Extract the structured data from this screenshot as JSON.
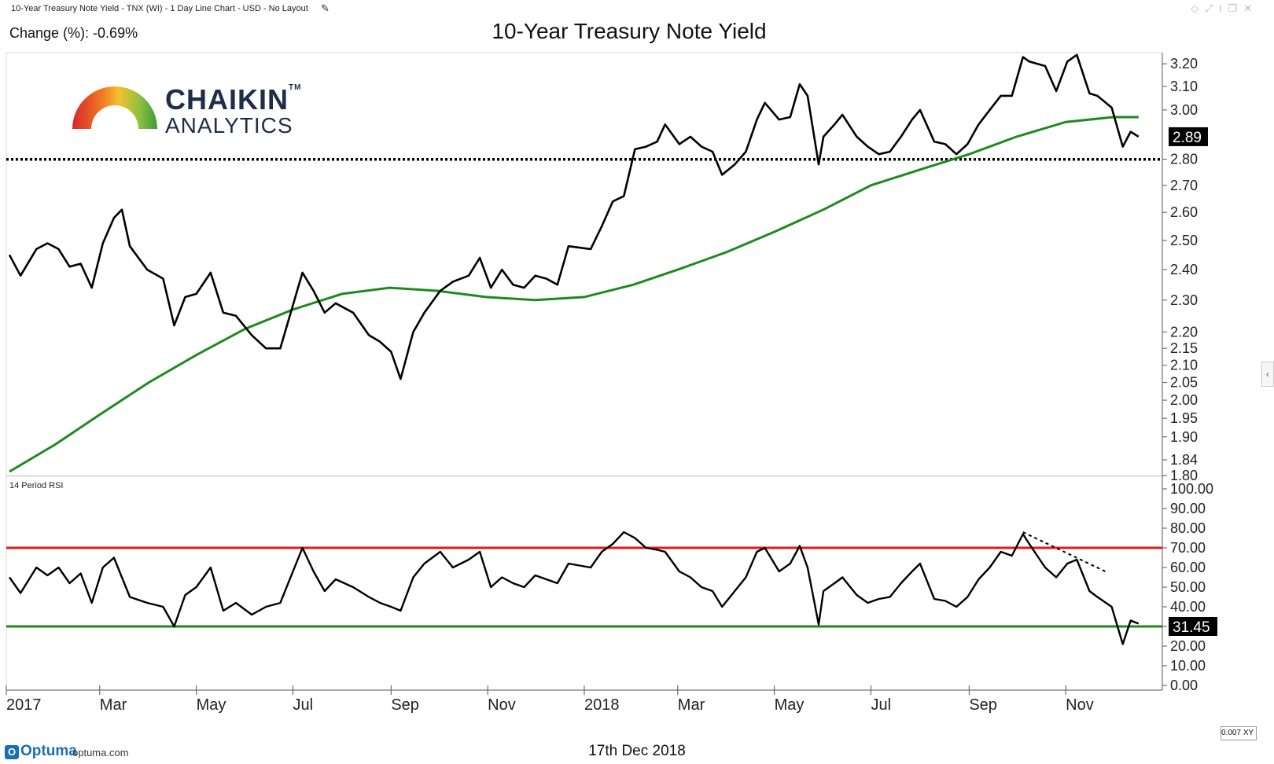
{
  "header": {
    "info": "10-Year Treasury Note Yield - TNX (WI) - 1 Day Line Chart - USD - No Layout",
    "change": "Change (%): -0.69%",
    "title": "10-Year Treasury Note Yield"
  },
  "logo": {
    "line1": "CHAIKIN",
    "line2": "ANALYTICS",
    "tm": "TM"
  },
  "footer": {
    "brand": "Optuma",
    "url": "optuma.com",
    "date": "17th Dec 2018",
    "zoom": "0.007",
    "xy": "XY"
  },
  "colors": {
    "price": "#000000",
    "ma": "#1e8a1e",
    "overbought": "#e01b1b",
    "oversold": "#1e8a1e"
  },
  "chart_data": [
    {
      "type": "line",
      "title": "10-Year Treasury Note Yield",
      "x_labels": [
        "2017",
        "Mar",
        "May",
        "Jul",
        "Sep",
        "Nov",
        "2018",
        "Mar",
        "May",
        "Jul",
        "Sep",
        "Nov"
      ],
      "y_ticks": [
        3.2,
        3.1,
        3.0,
        2.8,
        2.7,
        2.6,
        2.5,
        2.4,
        2.3,
        2.2,
        2.15,
        2.1,
        2.05,
        2.0,
        1.95,
        1.9,
        1.84,
        1.8
      ],
      "y_scale": "log",
      "ylim": [
        1.8,
        3.25
      ],
      "last_value_label": "2.89",
      "support_level": 2.8,
      "series": [
        {
          "name": "TNX",
          "points": [
            [
              "2017-01-03",
              2.45
            ],
            [
              "2017-01-10",
              2.38
            ],
            [
              "2017-01-20",
              2.47
            ],
            [
              "2017-01-27",
              2.49
            ],
            [
              "2017-02-03",
              2.47
            ],
            [
              "2017-02-10",
              2.41
            ],
            [
              "2017-02-17",
              2.42
            ],
            [
              "2017-02-24",
              2.34
            ],
            [
              "2017-03-03",
              2.49
            ],
            [
              "2017-03-10",
              2.58
            ],
            [
              "2017-03-15",
              2.61
            ],
            [
              "2017-03-20",
              2.48
            ],
            [
              "2017-03-31",
              2.4
            ],
            [
              "2017-04-10",
              2.37
            ],
            [
              "2017-04-17",
              2.22
            ],
            [
              "2017-04-24",
              2.31
            ],
            [
              "2017-05-01",
              2.32
            ],
            [
              "2017-05-10",
              2.39
            ],
            [
              "2017-05-18",
              2.26
            ],
            [
              "2017-05-26",
              2.25
            ],
            [
              "2017-06-05",
              2.19
            ],
            [
              "2017-06-14",
              2.15
            ],
            [
              "2017-06-23",
              2.15
            ],
            [
              "2017-07-07",
              2.39
            ],
            [
              "2017-07-14",
              2.33
            ],
            [
              "2017-07-21",
              2.26
            ],
            [
              "2017-07-28",
              2.29
            ],
            [
              "2017-08-08",
              2.26
            ],
            [
              "2017-08-18",
              2.19
            ],
            [
              "2017-08-25",
              2.17
            ],
            [
              "2017-09-01",
              2.14
            ],
            [
              "2017-09-07",
              2.06
            ],
            [
              "2017-09-15",
              2.2
            ],
            [
              "2017-09-22",
              2.26
            ],
            [
              "2017-10-02",
              2.33
            ],
            [
              "2017-10-10",
              2.36
            ],
            [
              "2017-10-20",
              2.38
            ],
            [
              "2017-10-27",
              2.44
            ],
            [
              "2017-11-03",
              2.34
            ],
            [
              "2017-11-10",
              2.4
            ],
            [
              "2017-11-17",
              2.35
            ],
            [
              "2017-11-24",
              2.34
            ],
            [
              "2017-12-01",
              2.38
            ],
            [
              "2017-12-08",
              2.37
            ],
            [
              "2017-12-15",
              2.35
            ],
            [
              "2017-12-22",
              2.48
            ],
            [
              "2018-01-05",
              2.47
            ],
            [
              "2018-01-12",
              2.55
            ],
            [
              "2018-01-19",
              2.64
            ],
            [
              "2018-01-26",
              2.66
            ],
            [
              "2018-02-02",
              2.84
            ],
            [
              "2018-02-09",
              2.85
            ],
            [
              "2018-02-16",
              2.87
            ],
            [
              "2018-02-21",
              2.94
            ],
            [
              "2018-03-02",
              2.86
            ],
            [
              "2018-03-09",
              2.89
            ],
            [
              "2018-03-16",
              2.85
            ],
            [
              "2018-03-23",
              2.83
            ],
            [
              "2018-03-29",
              2.74
            ],
            [
              "2018-04-06",
              2.78
            ],
            [
              "2018-04-13",
              2.83
            ],
            [
              "2018-04-20",
              2.96
            ],
            [
              "2018-04-25",
              3.03
            ],
            [
              "2018-05-04",
              2.96
            ],
            [
              "2018-05-11",
              2.97
            ],
            [
              "2018-05-17",
              3.11
            ],
            [
              "2018-05-22",
              3.06
            ],
            [
              "2018-05-29",
              2.78
            ],
            [
              "2018-06-01",
              2.89
            ],
            [
              "2018-06-08",
              2.94
            ],
            [
              "2018-06-13",
              2.98
            ],
            [
              "2018-06-22",
              2.89
            ],
            [
              "2018-06-29",
              2.85
            ],
            [
              "2018-07-06",
              2.82
            ],
            [
              "2018-07-13",
              2.83
            ],
            [
              "2018-07-20",
              2.89
            ],
            [
              "2018-07-27",
              2.96
            ],
            [
              "2018-08-01",
              3.0
            ],
            [
              "2018-08-10",
              2.87
            ],
            [
              "2018-08-17",
              2.86
            ],
            [
              "2018-08-24",
              2.82
            ],
            [
              "2018-08-31",
              2.86
            ],
            [
              "2018-09-07",
              2.94
            ],
            [
              "2018-09-14",
              3.0
            ],
            [
              "2018-09-21",
              3.06
            ],
            [
              "2018-09-28",
              3.06
            ],
            [
              "2018-10-05",
              3.23
            ],
            [
              "2018-10-09",
              3.21
            ],
            [
              "2018-10-19",
              3.19
            ],
            [
              "2018-10-26",
              3.08
            ],
            [
              "2018-11-02",
              3.21
            ],
            [
              "2018-11-08",
              3.24
            ],
            [
              "2018-11-16",
              3.07
            ],
            [
              "2018-11-21",
              3.06
            ],
            [
              "2018-11-30",
              3.01
            ],
            [
              "2018-12-07",
              2.85
            ],
            [
              "2018-12-12",
              2.91
            ],
            [
              "2018-12-17",
              2.89
            ]
          ]
        },
        {
          "name": "200-day moving average",
          "points": [
            [
              "2017-01-03",
              1.81
            ],
            [
              "2017-02-01",
              1.88
            ],
            [
              "2017-03-01",
              1.96
            ],
            [
              "2017-04-01",
              2.05
            ],
            [
              "2017-05-01",
              2.13
            ],
            [
              "2017-06-01",
              2.21
            ],
            [
              "2017-07-01",
              2.27
            ],
            [
              "2017-08-01",
              2.32
            ],
            [
              "2017-08-31",
              2.34
            ],
            [
              "2017-09-30",
              2.33
            ],
            [
              "2017-10-31",
              2.31
            ],
            [
              "2017-12-01",
              2.3
            ],
            [
              "2018-01-01",
              2.31
            ],
            [
              "2018-02-01",
              2.35
            ],
            [
              "2018-03-01",
              2.4
            ],
            [
              "2018-04-01",
              2.46
            ],
            [
              "2018-05-01",
              2.53
            ],
            [
              "2018-06-01",
              2.61
            ],
            [
              "2018-07-01",
              2.7
            ],
            [
              "2018-08-01",
              2.76
            ],
            [
              "2018-09-01",
              2.82
            ],
            [
              "2018-10-01",
              2.89
            ],
            [
              "2018-11-01",
              2.95
            ],
            [
              "2018-12-01",
              2.97
            ],
            [
              "2018-12-17",
              2.97
            ]
          ]
        }
      ]
    },
    {
      "type": "line",
      "title": "14 Period RSI",
      "y_ticks": [
        100.0,
        90.0,
        80.0,
        70.0,
        60.0,
        50.0,
        40.0,
        30.0,
        20.0,
        10.0,
        0.0
      ],
      "ylim": [
        0,
        100
      ],
      "last_value_label": "31.45",
      "overbought": 70,
      "oversold": 30,
      "trendline": [
        [
          "2018-10-05",
          78
        ],
        [
          "2018-11-26",
          58
        ]
      ],
      "series": [
        {
          "name": "RSI",
          "points": [
            [
              "2017-01-03",
              55
            ],
            [
              "2017-01-10",
              47
            ],
            [
              "2017-01-20",
              60
            ],
            [
              "2017-01-27",
              56
            ],
            [
              "2017-02-03",
              60
            ],
            [
              "2017-02-10",
              52
            ],
            [
              "2017-02-17",
              57
            ],
            [
              "2017-02-24",
              42
            ],
            [
              "2017-03-03",
              60
            ],
            [
              "2017-03-10",
              65
            ],
            [
              "2017-03-15",
              55
            ],
            [
              "2017-03-20",
              45
            ],
            [
              "2017-03-31",
              42
            ],
            [
              "2017-04-10",
              40
            ],
            [
              "2017-04-17",
              30
            ],
            [
              "2017-04-24",
              46
            ],
            [
              "2017-05-01",
              50
            ],
            [
              "2017-05-10",
              60
            ],
            [
              "2017-05-18",
              38
            ],
            [
              "2017-05-26",
              42
            ],
            [
              "2017-06-05",
              36
            ],
            [
              "2017-06-14",
              40
            ],
            [
              "2017-06-23",
              42
            ],
            [
              "2017-07-07",
              70
            ],
            [
              "2017-07-14",
              58
            ],
            [
              "2017-07-21",
              48
            ],
            [
              "2017-07-28",
              54
            ],
            [
              "2017-08-08",
              50
            ],
            [
              "2017-08-18",
              45
            ],
            [
              "2017-08-25",
              42
            ],
            [
              "2017-09-01",
              40
            ],
            [
              "2017-09-07",
              38
            ],
            [
              "2017-09-15",
              55
            ],
            [
              "2017-09-22",
              62
            ],
            [
              "2017-10-02",
              68
            ],
            [
              "2017-10-10",
              60
            ],
            [
              "2017-10-20",
              64
            ],
            [
              "2017-10-27",
              68
            ],
            [
              "2017-11-03",
              50
            ],
            [
              "2017-11-10",
              55
            ],
            [
              "2017-11-17",
              52
            ],
            [
              "2017-11-24",
              50
            ],
            [
              "2017-12-01",
              56
            ],
            [
              "2017-12-08",
              54
            ],
            [
              "2017-12-15",
              52
            ],
            [
              "2017-12-22",
              62
            ],
            [
              "2018-01-05",
              60
            ],
            [
              "2018-01-12",
              68
            ],
            [
              "2018-01-19",
              72
            ],
            [
              "2018-01-26",
              78
            ],
            [
              "2018-02-02",
              75
            ],
            [
              "2018-02-09",
              70
            ],
            [
              "2018-02-16",
              69
            ],
            [
              "2018-02-21",
              68
            ],
            [
              "2018-03-02",
              58
            ],
            [
              "2018-03-09",
              55
            ],
            [
              "2018-03-16",
              50
            ],
            [
              "2018-03-23",
              48
            ],
            [
              "2018-03-29",
              40
            ],
            [
              "2018-04-06",
              48
            ],
            [
              "2018-04-13",
              55
            ],
            [
              "2018-04-20",
              68
            ],
            [
              "2018-04-25",
              70
            ],
            [
              "2018-05-04",
              58
            ],
            [
              "2018-05-11",
              62
            ],
            [
              "2018-05-17",
              71
            ],
            [
              "2018-05-22",
              60
            ],
            [
              "2018-05-29",
              31
            ],
            [
              "2018-06-01",
              48
            ],
            [
              "2018-06-08",
              52
            ],
            [
              "2018-06-13",
              55
            ],
            [
              "2018-06-22",
              46
            ],
            [
              "2018-06-29",
              42
            ],
            [
              "2018-07-06",
              44
            ],
            [
              "2018-07-13",
              45
            ],
            [
              "2018-07-20",
              52
            ],
            [
              "2018-07-27",
              58
            ],
            [
              "2018-08-01",
              62
            ],
            [
              "2018-08-10",
              44
            ],
            [
              "2018-08-17",
              43
            ],
            [
              "2018-08-24",
              40
            ],
            [
              "2018-08-31",
              45
            ],
            [
              "2018-09-07",
              54
            ],
            [
              "2018-09-14",
              60
            ],
            [
              "2018-09-21",
              68
            ],
            [
              "2018-09-28",
              66
            ],
            [
              "2018-10-05",
              77
            ],
            [
              "2018-10-09",
              72
            ],
            [
              "2018-10-19",
              60
            ],
            [
              "2018-10-26",
              55
            ],
            [
              "2018-11-02",
              62
            ],
            [
              "2018-11-08",
              64
            ],
            [
              "2018-11-16",
              48
            ],
            [
              "2018-11-21",
              45
            ],
            [
              "2018-11-30",
              40
            ],
            [
              "2018-12-07",
              21
            ],
            [
              "2018-12-12",
              33
            ],
            [
              "2018-12-17",
              31.45
            ]
          ]
        }
      ]
    }
  ],
  "x_axis": {
    "labels": [
      "2017",
      "Mar",
      "May",
      "Jul",
      "Sep",
      "Nov",
      "2018",
      "Mar",
      "May",
      "Jul",
      "Sep",
      "Nov"
    ]
  }
}
